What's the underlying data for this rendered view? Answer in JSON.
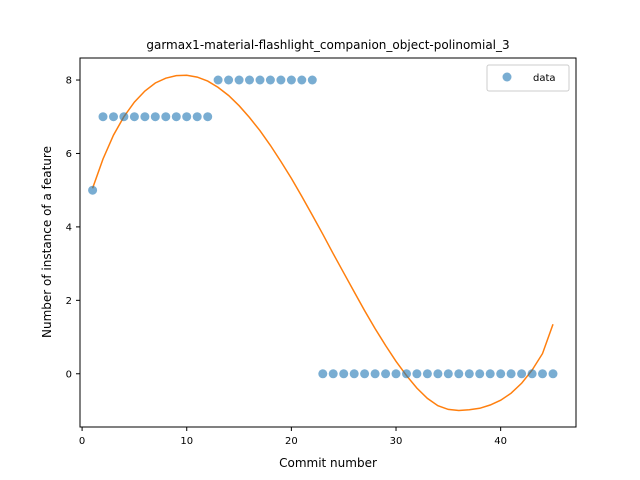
{
  "chart_data": {
    "type": "scatter",
    "title": "garmax1-material-flashlight_companion_object-polinomial_3",
    "xlabel": "Commit number",
    "ylabel": "Number of instance of a feature",
    "xlim": [
      -0.2,
      47.2
    ],
    "ylim": [
      -1.45,
      8.6
    ],
    "xticks": [
      0,
      10,
      20,
      30,
      40
    ],
    "yticks": [
      0,
      2,
      4,
      6,
      8
    ],
    "grid": false,
    "legend_position": "top-right",
    "series": [
      {
        "name": "data",
        "kind": "scatter",
        "color": "#1f77b4",
        "x": [
          1,
          2,
          3,
          4,
          5,
          6,
          7,
          8,
          9,
          10,
          11,
          12,
          13,
          14,
          15,
          16,
          17,
          18,
          19,
          20,
          21,
          22,
          23,
          24,
          25,
          26,
          27,
          28,
          29,
          30,
          31,
          32,
          33,
          34,
          35,
          36,
          37,
          38,
          39,
          40,
          41,
          42,
          43,
          44,
          45
        ],
        "y": [
          5,
          7,
          7,
          7,
          7,
          7,
          7,
          7,
          7,
          7,
          7,
          7,
          8,
          8,
          8,
          8,
          8,
          8,
          8,
          8,
          8,
          8,
          0,
          0,
          0,
          0,
          0,
          0,
          0,
          0,
          0,
          0,
          0,
          0,
          0,
          0,
          0,
          0,
          0,
          0,
          0,
          0,
          0,
          0,
          0
        ]
      },
      {
        "kind": "line",
        "color": "#ff7f0e",
        "x": [
          1,
          2,
          3,
          4,
          5,
          6,
          7,
          8,
          9,
          10,
          11,
          12,
          13,
          14,
          15,
          16,
          17,
          18,
          19,
          20,
          21,
          22,
          23,
          24,
          25,
          26,
          27,
          28,
          29,
          30,
          31,
          32,
          33,
          34,
          35,
          36,
          37,
          38,
          39,
          40,
          41,
          42,
          43,
          44,
          45
        ],
        "y": [
          5.05,
          5.85,
          6.5,
          7.0,
          7.4,
          7.7,
          7.92,
          8.05,
          8.12,
          8.13,
          8.08,
          7.97,
          7.8,
          7.58,
          7.3,
          6.98,
          6.62,
          6.22,
          5.78,
          5.32,
          4.83,
          4.32,
          3.8,
          3.27,
          2.75,
          2.23,
          1.72,
          1.23,
          0.77,
          0.34,
          -0.05,
          -0.39,
          -0.67,
          -0.87,
          -0.97,
          -1.0,
          -0.98,
          -0.94,
          -0.85,
          -0.72,
          -0.53,
          -0.26,
          0.1,
          0.55,
          1.35
        ]
      }
    ]
  }
}
